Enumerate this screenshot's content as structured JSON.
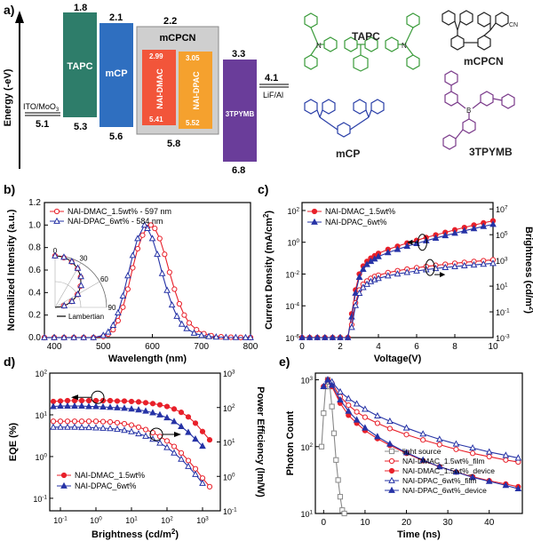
{
  "colors": {
    "tapc": "#2e7d6a",
    "mcp": "#2f6fc0",
    "mcpcn_box": "#cfcfcf",
    "nai_dmac": "#f2553a",
    "nai_dpac": "#f5a12e",
    "tpymb": "#6a3d9a",
    "red": "#e8202a",
    "blue": "#2633a6",
    "gray": "#888888",
    "green_struct": "#3a9b3a",
    "blue_struct": "#2a3fa8",
    "purple_struct": "#7a3a8a",
    "black_struct": "#222222"
  },
  "panels": {
    "a": "a)",
    "b": "b)",
    "c": "c)",
    "d": "d)",
    "e": "e)"
  },
  "energy": {
    "ylabel": "Energy (-eV)",
    "ito_label": "ITO/MoO",
    "ito_sub": "3",
    "ito_val": "5.1",
    "tapc_label": "TAPC",
    "tapc_top": "1.8",
    "tapc_bottom": "5.3",
    "mcp_label": "mCP",
    "mcp_top": "2.1",
    "mcp_bottom": "5.6",
    "mcpcn_label": "mCPCN",
    "mcpcn_top": "2.2",
    "mcpcn_bottom": "5.8",
    "dmac_label": "NAI-DMAC",
    "dmac_top": "2.99",
    "dmac_bottom": "5.41",
    "dpac_label": "NAI-DPAC",
    "dpac_top": "3.05",
    "dpac_bottom": "5.52",
    "tpymb_label": "3TPYMB",
    "tpymb_top": "3.3",
    "tpymb_bottom": "6.8",
    "lif_label": "LiF/Al",
    "lif_val": "4.1"
  },
  "molecules": {
    "tapc": "TAPC",
    "mcpcn": "mCPCN",
    "mcp": "mCP",
    "tpymb": "3TPYMB",
    "cn": "CN",
    "b": "B",
    "n": "N"
  },
  "chart_data": [
    {
      "panel": "b",
      "type": "line",
      "xlabel": "Wavelength (nm)",
      "ylabel": "Normalized Intensity (a.u.)",
      "xlim": [
        380,
        800
      ],
      "ylim": [
        0.0,
        1.2
      ],
      "xticks": [
        "400",
        "500",
        "600",
        "700",
        "800"
      ],
      "yticks": [
        "0.0",
        "0.2",
        "0.4",
        "0.6",
        "0.8",
        "1.0",
        "1.2"
      ],
      "legend_position": "top-left",
      "series": [
        {
          "name": "NAI-DMAC_1.5wt% - 597 nm",
          "marker": "circle-open",
          "x": [
            380,
            400,
            420,
            440,
            460,
            480,
            500,
            510,
            520,
            530,
            540,
            550,
            560,
            570,
            580,
            590,
            597,
            605,
            615,
            625,
            635,
            645,
            655,
            665,
            675,
            690,
            705,
            720,
            740,
            760,
            780,
            800
          ],
          "y": [
            0.0,
            0.0,
            0.0,
            0.0,
            0.0,
            0.0,
            0.01,
            0.03,
            0.07,
            0.15,
            0.27,
            0.43,
            0.62,
            0.79,
            0.91,
            0.98,
            1.0,
            0.97,
            0.88,
            0.74,
            0.58,
            0.43,
            0.3,
            0.2,
            0.13,
            0.07,
            0.035,
            0.017,
            0.007,
            0.003,
            0.001,
            0.0
          ]
        },
        {
          "name": "NAI-DPAC_6wt% - 584 nm",
          "marker": "triangle-open",
          "x": [
            380,
            400,
            420,
            440,
            460,
            480,
            500,
            510,
            520,
            530,
            540,
            550,
            560,
            570,
            584,
            590,
            600,
            610,
            620,
            630,
            640,
            650,
            660,
            670,
            685,
            700,
            715,
            730,
            750,
            770,
            790,
            800
          ],
          "y": [
            0.0,
            0.0,
            0.0,
            0.0,
            0.0,
            0.0,
            0.02,
            0.05,
            0.11,
            0.22,
            0.37,
            0.55,
            0.73,
            0.88,
            1.0,
            0.97,
            0.88,
            0.74,
            0.57,
            0.42,
            0.29,
            0.19,
            0.12,
            0.08,
            0.04,
            0.02,
            0.01,
            0.005,
            0.002,
            0.001,
            0.0,
            0.0
          ]
        }
      ],
      "inset": {
        "type": "polar",
        "angle_ticks": [
          "0",
          "30",
          "60",
          "90"
        ],
        "legend": "Lambertian",
        "angles": [
          0,
          10,
          20,
          30,
          40,
          50,
          60,
          70,
          80
        ],
        "dmac": [
          1.0,
          0.98,
          0.94,
          0.87,
          0.77,
          0.64,
          0.5,
          0.34,
          0.17
        ],
        "dpac": [
          1.0,
          0.99,
          0.95,
          0.88,
          0.78,
          0.66,
          0.51,
          0.35,
          0.18
        ]
      }
    },
    {
      "panel": "c",
      "type": "line",
      "xlabel": "Voltage(V)",
      "ylabel": "Current Density (mA/cm",
      "ylabel_sup": "2",
      "ylabel_end": ")",
      "y2label": "Brightness (cd/m",
      "y2label_sup": "2",
      "y2label_end": ")",
      "xlim": [
        0,
        10
      ],
      "ylim_log": [
        -6,
        2.5
      ],
      "y2lim_log": [
        -3,
        7.5
      ],
      "xticks": [
        "0",
        "2",
        "4",
        "6",
        "8",
        "10"
      ],
      "yticks": [
        "10",
        "10",
        "10",
        "10",
        "10"
      ],
      "ytick_exp": [
        "-6",
        "-4",
        "-2",
        "0",
        "2"
      ],
      "y2ticks": [
        "10",
        "10",
        "10",
        "10",
        "10",
        "10"
      ],
      "y2tick_exp": [
        "-3",
        "-1",
        "1",
        "3",
        "5",
        "7"
      ],
      "legend_position": "top-left",
      "series": [
        {
          "name": "NAI-DMAC_1.5wt%",
          "marker": "circle",
          "axis": "left",
          "x": [
            0,
            0.4,
            0.8,
            1.2,
            1.6,
            2.0,
            2.4,
            2.6,
            2.8,
            3.0,
            3.2,
            3.4,
            3.6,
            3.8,
            4.0,
            4.5,
            5.0,
            5.5,
            6.0,
            6.5,
            7.0,
            7.5,
            8.0,
            8.5,
            9.0,
            9.5,
            10.0
          ],
          "y": [
            -6,
            -6,
            -6,
            -6,
            -6,
            -6,
            -6,
            -4.5,
            -3.0,
            -2.0,
            -1.5,
            -1.2,
            -1.0,
            -0.85,
            -0.7,
            -0.45,
            -0.25,
            -0.05,
            0.12,
            0.3,
            0.46,
            0.62,
            0.78,
            0.93,
            1.08,
            1.22,
            1.35
          ]
        },
        {
          "name": "NAI-DPAC_6wt%",
          "marker": "triangle",
          "axis": "left",
          "x": [
            0,
            0.4,
            0.8,
            1.2,
            1.6,
            2.0,
            2.4,
            2.6,
            2.8,
            3.0,
            3.2,
            3.4,
            3.6,
            3.8,
            4.0,
            4.5,
            5.0,
            5.5,
            6.0,
            6.5,
            7.0,
            7.5,
            8.0,
            8.5,
            9.0,
            9.5,
            10.0
          ],
          "y": [
            -6,
            -6,
            -6,
            -6,
            -6,
            -6,
            -6,
            -4.7,
            -3.2,
            -2.2,
            -1.7,
            -1.4,
            -1.2,
            -1.05,
            -0.9,
            -0.65,
            -0.45,
            -0.25,
            -0.08,
            0.1,
            0.26,
            0.42,
            0.57,
            0.72,
            0.86,
            1.0,
            1.13
          ]
        },
        {
          "name": "",
          "marker": "circle-open",
          "axis": "right",
          "x": [
            2.6,
            2.8,
            3.0,
            3.2,
            3.4,
            3.6,
            3.8,
            4.0,
            4.5,
            5.0,
            5.5,
            6.0,
            6.5,
            7.0,
            7.5,
            8.0,
            8.5,
            9.0,
            9.5,
            10.0
          ],
          "y": [
            -2.0,
            -0.3,
            0.7,
            1.15,
            1.4,
            1.6,
            1.75,
            1.85,
            2.05,
            2.2,
            2.32,
            2.43,
            2.53,
            2.62,
            2.7,
            2.78,
            2.85,
            2.92,
            2.98,
            3.05
          ]
        },
        {
          "name": "",
          "marker": "triangle-open",
          "axis": "right",
          "x": [
            2.6,
            2.8,
            3.0,
            3.2,
            3.4,
            3.6,
            3.8,
            4.0,
            4.5,
            5.0,
            5.5,
            6.0,
            6.5,
            7.0,
            7.5,
            8.0,
            8.5,
            9.0,
            9.5,
            10.0
          ],
          "y": [
            -2.2,
            -0.5,
            0.45,
            0.9,
            1.15,
            1.35,
            1.5,
            1.6,
            1.8,
            1.95,
            2.07,
            2.18,
            2.28,
            2.37,
            2.45,
            2.52,
            2.59,
            2.65,
            2.71,
            2.77
          ]
        }
      ]
    },
    {
      "panel": "d",
      "type": "line",
      "xlabel": "Brightness (cd/m",
      "xlabel_sup": "2",
      "xlabel_end": ")",
      "ylabel": "EQE (%)",
      "y2label": "Power Efficiency (lm/W)",
      "xlim_log": [
        -1.3,
        3.5
      ],
      "ylim_log": [
        -1.3,
        2
      ],
      "y2lim_log": [
        -1,
        3
      ],
      "xticks": [
        "10",
        "10",
        "10",
        "10",
        "10"
      ],
      "xtick_exp": [
        "-1",
        "0",
        "1",
        "2",
        "3"
      ],
      "yticks": [
        "10",
        "10",
        "10",
        "10"
      ],
      "ytick_exp": [
        "-1",
        "0",
        "1",
        "2"
      ],
      "y2ticks": [
        "10",
        "10",
        "10",
        "10",
        "10"
      ],
      "y2tick_exp": [
        "-1",
        "0",
        "1",
        "2",
        "3"
      ],
      "legend_position": "bottom-left",
      "series": [
        {
          "name": "NAI-DMAC_1.5wt%",
          "marker": "circle",
          "axis": "left",
          "x": [
            -1.2,
            -1.0,
            -0.8,
            -0.6,
            -0.4,
            -0.2,
            0,
            0.2,
            0.4,
            0.6,
            0.8,
            1.0,
            1.2,
            1.4,
            1.6,
            1.8,
            2.0,
            2.2,
            2.4,
            2.6,
            2.8,
            3.0,
            3.2
          ],
          "y": [
            1.32,
            1.33,
            1.34,
            1.34,
            1.34,
            1.34,
            1.34,
            1.34,
            1.34,
            1.33,
            1.33,
            1.32,
            1.31,
            1.29,
            1.27,
            1.24,
            1.2,
            1.14,
            1.06,
            0.95,
            0.8,
            0.6,
            0.4
          ]
        },
        {
          "name": "NAI-DPAC_6wt%",
          "marker": "triangle",
          "axis": "left",
          "x": [
            -1.2,
            -1.0,
            -0.8,
            -0.6,
            -0.4,
            -0.2,
            0,
            0.2,
            0.4,
            0.6,
            0.8,
            1.0,
            1.2,
            1.4,
            1.6,
            1.8,
            2.0,
            2.2,
            2.4,
            2.6,
            2.8,
            3.0
          ],
          "y": [
            1.2,
            1.21,
            1.21,
            1.21,
            1.21,
            1.2,
            1.2,
            1.19,
            1.18,
            1.17,
            1.16,
            1.14,
            1.12,
            1.09,
            1.05,
            1.0,
            0.93,
            0.84,
            0.72,
            0.58,
            0.42,
            0.25
          ]
        },
        {
          "name": "",
          "marker": "circle-open",
          "axis": "right",
          "x": [
            -1.2,
            -1.0,
            -0.8,
            -0.6,
            -0.4,
            -0.2,
            0,
            0.2,
            0.4,
            0.6,
            0.8,
            1.0,
            1.2,
            1.4,
            1.6,
            1.8,
            2.0,
            2.2,
            2.4,
            2.6,
            2.8,
            3.0,
            3.2
          ],
          "y": [
            1.6,
            1.6,
            1.6,
            1.6,
            1.6,
            1.6,
            1.6,
            1.59,
            1.58,
            1.56,
            1.53,
            1.49,
            1.43,
            1.36,
            1.27,
            1.16,
            1.03,
            0.87,
            0.68,
            0.46,
            0.22,
            -0.05,
            -0.3
          ]
        },
        {
          "name": "",
          "marker": "triangle-open",
          "axis": "right",
          "x": [
            -1.2,
            -1.0,
            -0.8,
            -0.6,
            -0.4,
            -0.2,
            0,
            0.2,
            0.4,
            0.6,
            0.8,
            1.0,
            1.2,
            1.4,
            1.6,
            1.8,
            2.0,
            2.2,
            2.4,
            2.6,
            2.8,
            3.0
          ],
          "y": [
            1.43,
            1.43,
            1.43,
            1.43,
            1.42,
            1.42,
            1.41,
            1.4,
            1.39,
            1.37,
            1.34,
            1.3,
            1.24,
            1.17,
            1.08,
            0.97,
            0.84,
            0.68,
            0.5,
            0.29,
            0.06,
            -0.2
          ]
        }
      ]
    },
    {
      "panel": "e",
      "type": "line",
      "xlabel": "Time (ns)",
      "ylabel": "Photon Count",
      "xlim": [
        -2,
        48
      ],
      "ylim_log": [
        1,
        3.1
      ],
      "xticks": [
        "0",
        "10",
        "20",
        "30",
        "40"
      ],
      "yticks": [
        "10",
        "10",
        "10"
      ],
      "ytick_exp": [
        "1",
        "2",
        "3"
      ],
      "legend_position": "bottom-right",
      "series": [
        {
          "name": "light source",
          "marker": "square-open",
          "color": "gray",
          "x": [
            -0.5,
            0,
            0.5,
            1.0,
            1.5,
            2.0,
            2.5,
            3.0,
            3.5,
            4.0,
            4.5,
            5.0
          ],
          "y": [
            2.0,
            2.5,
            2.9,
            3.0,
            2.9,
            2.6,
            2.2,
            1.8,
            1.5,
            1.25,
            1.05,
            1.0
          ]
        },
        {
          "name": "NAI-DMAC_1.5wt%_film",
          "marker": "circle-open",
          "color": "red",
          "x": [
            0,
            1,
            2,
            4,
            6,
            8,
            10,
            13,
            16,
            20,
            24,
            28,
            32,
            36,
            40,
            44,
            47
          ],
          "y": [
            2.9,
            3.0,
            2.95,
            2.75,
            2.62,
            2.52,
            2.44,
            2.35,
            2.27,
            2.18,
            2.1,
            2.03,
            1.96,
            1.9,
            1.85,
            1.8,
            1.77
          ]
        },
        {
          "name": "NAI-DMAC_1.5wt%_device",
          "marker": "circle",
          "color": "red",
          "x": [
            0,
            1,
            2,
            4,
            6,
            8,
            10,
            13,
            16,
            20,
            24,
            28,
            32,
            36,
            40,
            44,
            47
          ],
          "y": [
            2.9,
            3.0,
            2.9,
            2.65,
            2.47,
            2.35,
            2.24,
            2.12,
            2.02,
            1.9,
            1.79,
            1.7,
            1.62,
            1.55,
            1.49,
            1.44,
            1.4
          ]
        },
        {
          "name": "NAI-DPAC_6wt%_film",
          "marker": "triangle-open",
          "color": "blue",
          "x": [
            0,
            1,
            2,
            4,
            6,
            8,
            10,
            13,
            16,
            20,
            24,
            28,
            32,
            36,
            40,
            44,
            47
          ],
          "y": [
            2.9,
            3.0,
            2.97,
            2.82,
            2.72,
            2.64,
            2.56,
            2.46,
            2.38,
            2.28,
            2.19,
            2.11,
            2.04,
            1.98,
            1.92,
            1.87,
            1.83
          ]
        },
        {
          "name": "NAI-DPAC_6wt%_device",
          "marker": "triangle",
          "color": "blue",
          "x": [
            0,
            1,
            2,
            4,
            6,
            8,
            10,
            13,
            16,
            20,
            24,
            28,
            32,
            36,
            40,
            44,
            47
          ],
          "y": [
            2.9,
            3.0,
            2.92,
            2.7,
            2.53,
            2.4,
            2.28,
            2.15,
            2.04,
            1.91,
            1.8,
            1.7,
            1.62,
            1.54,
            1.48,
            1.42,
            1.37
          ]
        }
      ]
    }
  ]
}
